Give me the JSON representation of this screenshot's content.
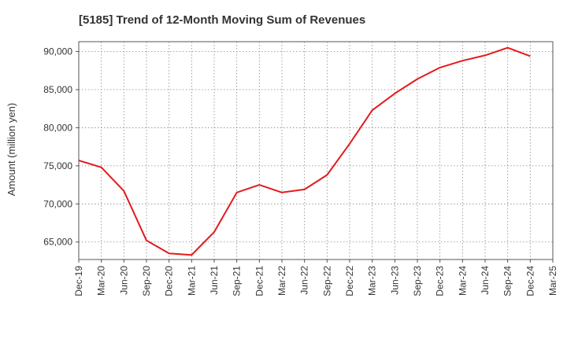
{
  "chart_data": {
    "type": "line",
    "title": "[5185]  Trend of 12-Month Moving Sum of Revenues",
    "ylabel": "Amount (million yen)",
    "xlabel": "",
    "x_ticks": [
      "Dec-19",
      "Mar-20",
      "Jun-20",
      "Sep-20",
      "Dec-20",
      "Mar-21",
      "Jun-21",
      "Sep-21",
      "Dec-21",
      "Mar-22",
      "Jun-22",
      "Sep-22",
      "Dec-22",
      "Mar-23",
      "Jun-23",
      "Sep-23",
      "Dec-23",
      "Mar-24",
      "Jun-24",
      "Sep-24",
      "Dec-24",
      "Mar-25"
    ],
    "y_ticks": [
      "65,000",
      "70,000",
      "75,000",
      "80,000",
      "85,000",
      "90,000"
    ],
    "y_tick_values": [
      65000,
      70000,
      75000,
      80000,
      85000,
      90000
    ],
    "ylim": [
      62700,
      91300
    ],
    "grid": true,
    "series": [
      {
        "color": "#e31a1c",
        "x": [
          "Dec-19",
          "Mar-20",
          "Jun-20",
          "Sep-20",
          "Dec-20",
          "Mar-21",
          "Jun-21",
          "Sep-21",
          "Dec-21",
          "Mar-22",
          "Jun-22",
          "Sep-22",
          "Dec-22",
          "Mar-23",
          "Jun-23",
          "Sep-23",
          "Dec-23",
          "Mar-24",
          "Jun-24",
          "Sep-24",
          "Dec-24"
        ],
        "values": [
          75700,
          74800,
          71700,
          65200,
          63500,
          63300,
          66300,
          71500,
          72500,
          71500,
          71900,
          73800,
          77900,
          82300,
          84500,
          86400,
          87900,
          88800,
          89500,
          90500,
          89400
        ]
      }
    ]
  }
}
